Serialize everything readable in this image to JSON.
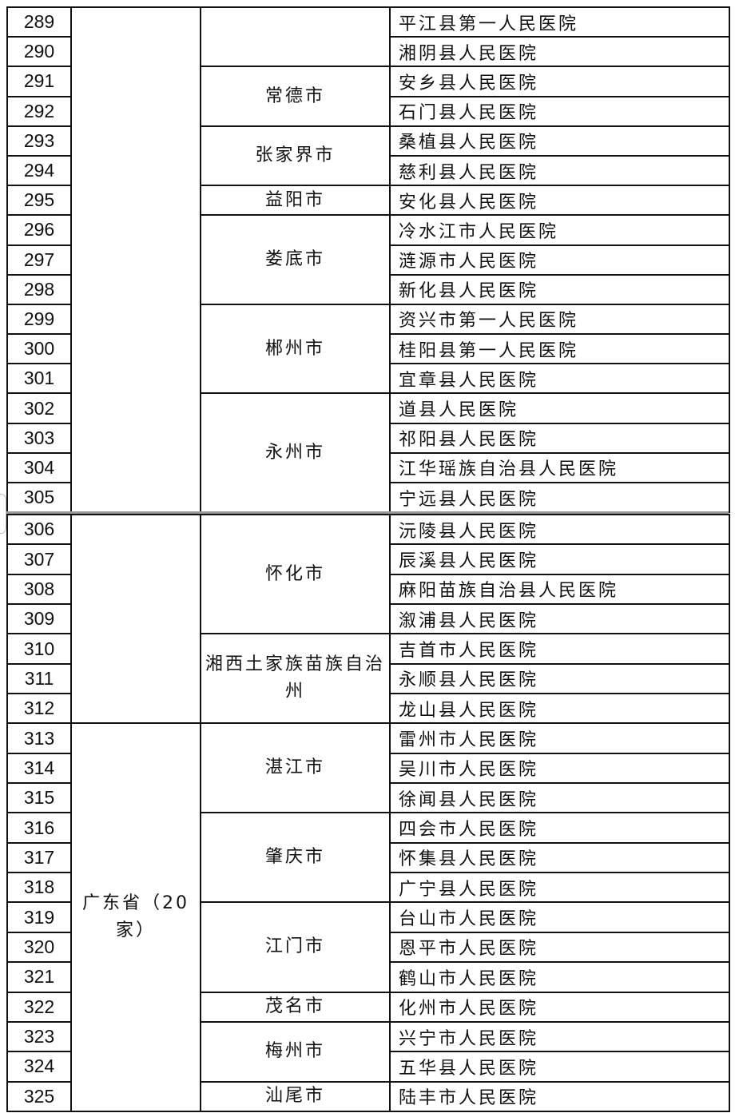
{
  "tables": [
    {
      "province": "",
      "cities": [
        {
          "name": "",
          "hospitals": [
            [
              "289",
              "平江县第一人民医院"
            ],
            [
              "290",
              "湘阴县人民医院"
            ]
          ]
        },
        {
          "name": "常德市",
          "hospitals": [
            [
              "291",
              "安乡县人民医院"
            ],
            [
              "292",
              "石门县人民医院"
            ]
          ]
        },
        {
          "name": "张家界市",
          "hospitals": [
            [
              "293",
              "桑植县人民医院"
            ],
            [
              "294",
              "慈利县人民医院"
            ]
          ]
        },
        {
          "name": "益阳市",
          "hospitals": [
            [
              "295",
              "安化县人民医院"
            ]
          ]
        },
        {
          "name": "娄底市",
          "hospitals": [
            [
              "296",
              "冷水江市人民医院"
            ],
            [
              "297",
              "涟源市人民医院"
            ],
            [
              "298",
              "新化县人民医院"
            ]
          ]
        },
        {
          "name": "郴州市",
          "hospitals": [
            [
              "299",
              "资兴市第一人民医院"
            ],
            [
              "300",
              "桂阳县第一人民医院"
            ],
            [
              "301",
              "宜章县人民医院"
            ]
          ]
        },
        {
          "name": "永州市",
          "hospitals": [
            [
              "302",
              "道县人民医院"
            ],
            [
              "303",
              "祁阳县人民医院"
            ],
            [
              "304",
              "江华瑶族自治县人民医院"
            ],
            [
              "305",
              "宁远县人民医院"
            ]
          ]
        }
      ]
    },
    {
      "groups": [
        {
          "province": "",
          "cities": [
            {
              "name": "怀化市",
              "hospitals": [
                [
                  "306",
                  "沅陵县人民医院"
                ],
                [
                  "307",
                  "辰溪县人民医院"
                ],
                [
                  "308",
                  "麻阳苗族自治县人民医院"
                ],
                [
                  "309",
                  "溆浦县人民医院"
                ]
              ]
            },
            {
              "name": "湘西土家族苗族自治州",
              "hospitals": [
                [
                  "310",
                  "吉首市人民医院"
                ],
                [
                  "311",
                  "永顺县人民医院"
                ],
                [
                  "312",
                  "龙山县人民医院"
                ]
              ]
            }
          ]
        },
        {
          "province": "广东省（20家）",
          "cities": [
            {
              "name": "湛江市",
              "hospitals": [
                [
                  "313",
                  "雷州市人民医院"
                ],
                [
                  "314",
                  "吴川市人民医院"
                ],
                [
                  "315",
                  "徐闻县人民医院"
                ]
              ]
            },
            {
              "name": "肇庆市",
              "hospitals": [
                [
                  "316",
                  "四会市人民医院"
                ],
                [
                  "317",
                  "怀集县人民医院"
                ],
                [
                  "318",
                  "广宁县人民医院"
                ]
              ]
            },
            {
              "name": "江门市",
              "hospitals": [
                [
                  "319",
                  "台山市人民医院"
                ],
                [
                  "320",
                  "恩平市人民医院"
                ],
                [
                  "321",
                  "鹤山市人民医院"
                ]
              ]
            },
            {
              "name": "茂名市",
              "hospitals": [
                [
                  "322",
                  "化州市人民医院"
                ]
              ]
            },
            {
              "name": "梅州市",
              "hospitals": [
                [
                  "323",
                  "兴宁市人民医院"
                ],
                [
                  "324",
                  "五华县人民医院"
                ]
              ]
            },
            {
              "name": "汕尾市",
              "hospitals": [
                [
                  "325",
                  "陆丰市人民医院"
                ]
              ]
            }
          ]
        }
      ]
    }
  ]
}
